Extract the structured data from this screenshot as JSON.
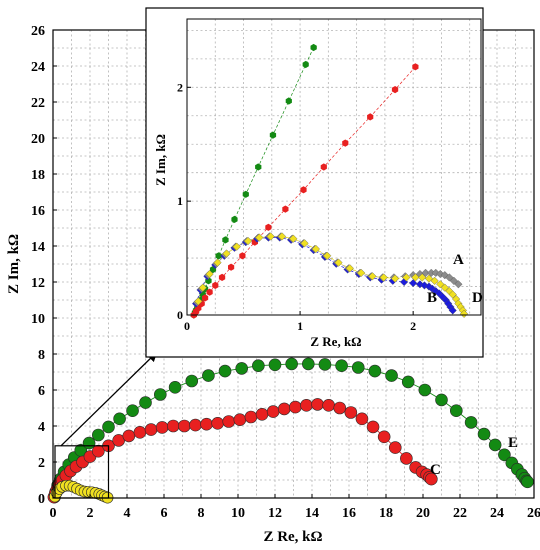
{
  "chart_data": [
    {
      "type": "scatter",
      "title": "",
      "xlabel": "Z Re, kΩ",
      "ylabel": "Z Im, kΩ",
      "xlim": [
        0,
        26
      ],
      "ylim": [
        0,
        26
      ],
      "x_ticks": [
        "0",
        "2",
        "4",
        "6",
        "8",
        "10",
        "12",
        "14",
        "16",
        "18",
        "20",
        "22",
        "24",
        "26"
      ],
      "y_ticks": [
        "0",
        "2",
        "4",
        "6",
        "8",
        "10",
        "12",
        "14",
        "16",
        "18",
        "20",
        "22",
        "24",
        "26"
      ],
      "grid": true,
      "series": [
        {
          "name": "E",
          "color": "#138a13",
          "x": [
            0.08,
            0.15,
            0.25,
            0.4,
            0.6,
            0.85,
            1.15,
            1.5,
            1.95,
            2.45,
            3.0,
            3.6,
            4.3,
            5.0,
            5.8,
            6.6,
            7.5,
            8.4,
            9.3,
            10.2,
            11.1,
            12.0,
            12.9,
            13.8,
            14.7,
            15.6,
            16.5,
            17.4,
            18.3,
            19.2,
            20.1,
            21.0,
            21.8,
            22.6,
            23.3,
            23.9,
            24.4,
            24.8,
            25.1,
            25.35,
            25.5,
            25.6,
            25.65
          ],
          "y": [
            0.05,
            0.35,
            0.7,
            1.05,
            1.45,
            1.85,
            2.25,
            2.65,
            3.05,
            3.5,
            3.95,
            4.4,
            4.85,
            5.3,
            5.75,
            6.15,
            6.5,
            6.8,
            7.05,
            7.2,
            7.35,
            7.4,
            7.45,
            7.45,
            7.42,
            7.35,
            7.25,
            7.05,
            6.8,
            6.45,
            6.0,
            5.45,
            4.85,
            4.2,
            3.55,
            2.95,
            2.4,
            1.95,
            1.6,
            1.3,
            1.1,
            0.95,
            0.9
          ]
        },
        {
          "name": "C",
          "color": "#e82020",
          "x": [
            0.05,
            0.12,
            0.22,
            0.35,
            0.5,
            0.7,
            0.95,
            1.25,
            1.6,
            2.0,
            2.45,
            3.0,
            3.55,
            4.1,
            4.7,
            5.3,
            5.9,
            6.5,
            7.1,
            7.7,
            8.3,
            8.9,
            9.5,
            10.1,
            10.7,
            11.3,
            11.9,
            12.5,
            13.1,
            13.7,
            14.3,
            14.9,
            15.5,
            16.1,
            16.7,
            17.3,
            17.9,
            18.5,
            19.1,
            19.6,
            19.95,
            20.2,
            20.35,
            20.45
          ],
          "y": [
            0.05,
            0.25,
            0.5,
            0.75,
            1.0,
            1.25,
            1.5,
            1.75,
            2.0,
            2.3,
            2.6,
            2.9,
            3.2,
            3.45,
            3.65,
            3.8,
            3.92,
            4.0,
            4.0,
            4.05,
            4.1,
            4.15,
            4.25,
            4.35,
            4.5,
            4.65,
            4.8,
            4.95,
            5.05,
            5.15,
            5.2,
            5.15,
            5.0,
            4.75,
            4.4,
            3.95,
            3.4,
            2.8,
            2.2,
            1.7,
            1.45,
            1.3,
            1.15,
            1.05
          ]
        },
        {
          "name": "D",
          "color": "#f0e020",
          "x": [
            0.1,
            0.2,
            0.35,
            0.5,
            0.7,
            0.9,
            1.1,
            1.3,
            1.5,
            1.7,
            1.9,
            2.1,
            2.3,
            2.5,
            2.65,
            2.8,
            2.95
          ],
          "y": [
            0.08,
            0.3,
            0.5,
            0.62,
            0.68,
            0.68,
            0.62,
            0.52,
            0.42,
            0.36,
            0.34,
            0.32,
            0.28,
            0.22,
            0.15,
            0.08,
            0.02
          ]
        }
      ],
      "curve_labels": [
        "C",
        "E"
      ],
      "zoom_box": {
        "x": [
          0,
          3.0
        ],
        "y": [
          0,
          2.9
        ]
      }
    },
    {
      "type": "scatter",
      "title": "",
      "xlabel": "Z Re, kΩ",
      "ylabel": "Z Im, kΩ",
      "xlim": [
        0,
        2.6
      ],
      "ylim": [
        0,
        2.6
      ],
      "x_ticks": [
        "0",
        "1",
        "2"
      ],
      "y_ticks": [
        "0",
        "1",
        "2"
      ],
      "grid": true,
      "series": [
        {
          "name": "E",
          "color": "#138a13",
          "x": [
            0.06,
            0.07,
            0.08,
            0.09,
            0.1,
            0.12,
            0.14,
            0.16,
            0.19,
            0.23,
            0.28,
            0.34,
            0.42,
            0.52,
            0.63,
            0.76,
            0.9,
            1.05,
            1.12
          ],
          "y": [
            0.0,
            0.02,
            0.04,
            0.06,
            0.09,
            0.13,
            0.18,
            0.23,
            0.3,
            0.4,
            0.52,
            0.66,
            0.84,
            1.06,
            1.3,
            1.58,
            1.88,
            2.2,
            2.35
          ]
        },
        {
          "name": "C",
          "color": "#e82020",
          "x": [
            0.06,
            0.08,
            0.1,
            0.13,
            0.16,
            0.2,
            0.25,
            0.31,
            0.39,
            0.49,
            0.6,
            0.72,
            0.87,
            1.03,
            1.21,
            1.4,
            1.62,
            1.84,
            2.02
          ],
          "y": [
            0.0,
            0.03,
            0.06,
            0.1,
            0.15,
            0.2,
            0.26,
            0.33,
            0.42,
            0.52,
            0.64,
            0.77,
            0.93,
            1.1,
            1.3,
            1.51,
            1.74,
            1.98,
            2.18
          ]
        },
        {
          "name": "B",
          "color": "#1c1cdc",
          "x": [
            0.08,
            0.12,
            0.18,
            0.25,
            0.33,
            0.42,
            0.52,
            0.62,
            0.72,
            0.82,
            0.92,
            1.02,
            1.12,
            1.22,
            1.32,
            1.42,
            1.52,
            1.62,
            1.72,
            1.82,
            1.92,
            2.0,
            2.06,
            2.1,
            2.14,
            2.17,
            2.2,
            2.23,
            2.26,
            2.29,
            2.31,
            2.33,
            2.35
          ],
          "y": [
            0.1,
            0.22,
            0.34,
            0.44,
            0.52,
            0.59,
            0.64,
            0.67,
            0.68,
            0.68,
            0.66,
            0.62,
            0.57,
            0.51,
            0.45,
            0.4,
            0.36,
            0.33,
            0.31,
            0.3,
            0.29,
            0.28,
            0.27,
            0.26,
            0.25,
            0.23,
            0.21,
            0.19,
            0.16,
            0.13,
            0.1,
            0.07,
            0.04
          ]
        },
        {
          "name": "A",
          "color": "#8c8c8c",
          "x": [
            0.09,
            0.13,
            0.19,
            0.26,
            0.34,
            0.43,
            0.53,
            0.63,
            0.73,
            0.83,
            0.93,
            1.03,
            1.13,
            1.23,
            1.33,
            1.43,
            1.53,
            1.63,
            1.73,
            1.83,
            1.93,
            2.0,
            2.06,
            2.11,
            2.16,
            2.2,
            2.24,
            2.28,
            2.32,
            2.36,
            2.4
          ],
          "y": [
            0.11,
            0.23,
            0.35,
            0.45,
            0.53,
            0.6,
            0.65,
            0.68,
            0.69,
            0.69,
            0.67,
            0.63,
            0.58,
            0.52,
            0.46,
            0.41,
            0.37,
            0.34,
            0.33,
            0.33,
            0.34,
            0.35,
            0.36,
            0.37,
            0.37,
            0.37,
            0.36,
            0.35,
            0.33,
            0.3,
            0.27
          ]
        },
        {
          "name": "D",
          "color": "#f0e020",
          "x": [
            0.1,
            0.14,
            0.2,
            0.27,
            0.35,
            0.44,
            0.54,
            0.64,
            0.74,
            0.84,
            0.94,
            1.04,
            1.14,
            1.24,
            1.34,
            1.44,
            1.54,
            1.64,
            1.74,
            1.84,
            1.94,
            2.02,
            2.08,
            2.14,
            2.19,
            2.24,
            2.28,
            2.32,
            2.35,
            2.38,
            2.4,
            2.42,
            2.44,
            2.45
          ],
          "y": [
            0.12,
            0.24,
            0.36,
            0.46,
            0.54,
            0.6,
            0.65,
            0.68,
            0.69,
            0.69,
            0.67,
            0.63,
            0.58,
            0.52,
            0.46,
            0.41,
            0.37,
            0.34,
            0.33,
            0.32,
            0.33,
            0.33,
            0.33,
            0.32,
            0.3,
            0.27,
            0.24,
            0.21,
            0.18,
            0.14,
            0.1,
            0.07,
            0.04,
            0.01
          ]
        }
      ],
      "curve_labels": [
        "A",
        "B",
        "D"
      ]
    }
  ]
}
